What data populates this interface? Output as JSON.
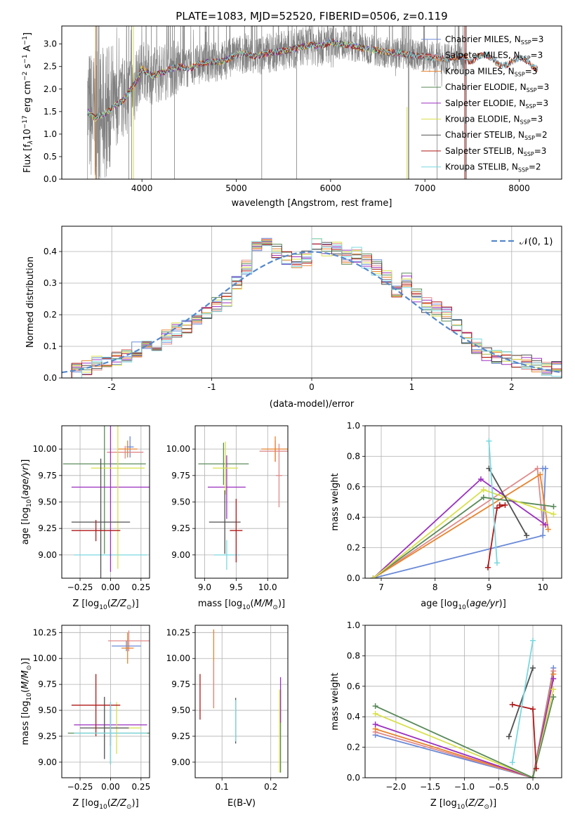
{
  "chart_data": [
    {
      "id": "spectrum",
      "type": "line",
      "title": "PLATE=1083, MJD=52520, FIBERID=0506, z=0.119",
      "xlabel": "wavelength [Angstrom, rest frame]",
      "ylabel": "Flux [f$_\\lambda$10$^{-17}$ erg cm$^{-2}$ s$^{-1}$ A$^{-1}$]",
      "ylabel_parts": {
        "a": "Flux [f",
        "b": "λ",
        "c": "10",
        "d": "−17",
        "e": " erg cm",
        "f": "−2",
        "g": " s",
        "h": "−1",
        "i": " A",
        "j": "−1",
        "k": "]"
      },
      "xlim": [
        3150,
        8450
      ],
      "ylim": [
        0,
        3.4
      ],
      "xticks": [
        4000,
        5000,
        6000,
        7000,
        8000
      ],
      "yticks": [
        0.0,
        0.5,
        1.0,
        1.5,
        2.0,
        2.5,
        3.0
      ],
      "legend_position": "right",
      "data_color": "#808080",
      "model_x": [
        3420,
        3500,
        3600,
        3700,
        3800,
        3900,
        3950,
        4000,
        4100,
        4200,
        4300,
        4400,
        4500,
        4600,
        4700,
        4800,
        4900,
        5000,
        5100,
        5200,
        5300,
        5400,
        5500,
        5600,
        5700,
        5800,
        5900,
        6000,
        6100,
        6200,
        6300,
        6400,
        6500,
        6600,
        6700,
        6800,
        6900,
        7000,
        7100,
        7200,
        7300,
        7400
      ],
      "model_y": [
        1.5,
        1.35,
        1.45,
        1.6,
        1.75,
        2.05,
        2.2,
        2.45,
        2.3,
        2.35,
        2.45,
        2.5,
        2.45,
        2.55,
        2.6,
        2.6,
        2.65,
        2.75,
        2.8,
        2.72,
        2.78,
        2.82,
        2.85,
        2.88,
        2.95,
        2.98,
        2.95,
        3.05,
        3.0,
        2.97,
        2.92,
        2.9,
        2.85,
        2.82,
        2.8,
        2.78,
        2.75,
        2.72,
        2.7,
        2.68,
        2.7,
        2.72
      ],
      "legend": [
        {
          "label": "Chabrier MILES, N$_{SSP}$=3",
          "pre": "Chabrier MILES, N",
          "sub": "SSP",
          "post": "=3",
          "color": "#6a8ad8"
        },
        {
          "label": "Salpeter MILES, N$_{SSP}$=3",
          "pre": "Salpeter MILES, N",
          "sub": "SSP",
          "post": "=3",
          "color": "#e08a8a"
        },
        {
          "label": "Kroupa MILES, N$_{SSP}$=3",
          "pre": "Kroupa MILES, N",
          "sub": "SSP",
          "post": "=3",
          "color": "#e8832d"
        },
        {
          "label": "Chabrier ELODIE, N$_{SSP}$=3",
          "pre": "Chabrier ELODIE, N",
          "sub": "SSP",
          "post": "=3",
          "color": "#5a8a5a"
        },
        {
          "label": "Salpeter ELODIE, N$_{SSP}$=3",
          "pre": "Salpeter ELODIE, N",
          "sub": "SSP",
          "post": "=3",
          "color": "#9b30c0"
        },
        {
          "label": "Kroupa ELODIE, N$_{SSP}$=3",
          "pre": "Kroupa ELODIE, N",
          "sub": "SSP",
          "post": "=3",
          "color": "#d8e04a"
        },
        {
          "label": "Chabrier STELIB, N$_{SSP}$=2",
          "pre": "Chabrier STELIB, N",
          "sub": "SSP",
          "post": "=2",
          "color": "#505050"
        },
        {
          "label": "Salpeter STELIB, N$_{SSP}$=3",
          "pre": "Salpeter STELIB, N",
          "sub": "SSP",
          "post": "=3",
          "color": "#b01818"
        },
        {
          "label": "Kroupa STELIB, N$_{SSP}$=2",
          "pre": "Kroupa STELIB, N",
          "sub": "SSP",
          "post": "=2",
          "color": "#7ad8e0"
        }
      ]
    },
    {
      "id": "residuals",
      "type": "line",
      "xlabel": "(data-model)/error",
      "ylabel": "Normed distribution",
      "xlim": [
        -2.5,
        2.5
      ],
      "ylim": [
        0,
        0.48
      ],
      "xticks": [
        -2,
        -1,
        0,
        1,
        2
      ],
      "yticks": [
        0.0,
        0.1,
        0.2,
        0.3,
        0.4
      ],
      "grid": true,
      "legend": [
        {
          "label": "$\\mathcal{N}(0,1)$",
          "text": "𝒩(0, 1)",
          "color": "#5588cc"
        }
      ],
      "legend_position": "top-right",
      "normal_curve": {
        "mean": 0,
        "sigma": 1,
        "color": "#5588cc",
        "dashed": true
      },
      "bin_width": 0.1,
      "hist_x": [
        -2.5,
        -2.4,
        -2.3,
        -2.2,
        -2.1,
        -2.0,
        -1.9,
        -1.8,
        -1.7,
        -1.6,
        -1.5,
        -1.4,
        -1.3,
        -1.2,
        -1.1,
        -1.0,
        -0.9,
        -0.8,
        -0.7,
        -0.6,
        -0.5,
        -0.4,
        -0.3,
        -0.2,
        -0.1,
        0.0,
        0.1,
        0.2,
        0.3,
        0.4,
        0.5,
        0.6,
        0.7,
        0.8,
        0.9,
        1.0,
        1.1,
        1.2,
        1.3,
        1.4,
        1.5,
        1.6,
        1.7,
        1.8,
        1.9,
        2.0,
        2.1,
        2.2,
        2.3,
        2.4
      ],
      "hist_y": [
        0.02,
        0.025,
        0.035,
        0.05,
        0.06,
        0.065,
        0.075,
        0.09,
        0.1,
        0.11,
        0.13,
        0.15,
        0.16,
        0.19,
        0.21,
        0.23,
        0.25,
        0.3,
        0.35,
        0.42,
        0.43,
        0.4,
        0.38,
        0.37,
        0.38,
        0.42,
        0.41,
        0.41,
        0.38,
        0.39,
        0.37,
        0.35,
        0.32,
        0.28,
        0.31,
        0.26,
        0.23,
        0.22,
        0.2,
        0.17,
        0.12,
        0.1,
        0.08,
        0.07,
        0.06,
        0.05,
        0.05,
        0.04,
        0.03,
        0.03
      ]
    },
    {
      "id": "age_vs_Z",
      "type": "scatter",
      "xlabel": "Z [log$_{10}$(Z/Z$_\\odot$)]",
      "ylabel": "age  [log$_{10}$(age/yr)]",
      "xlim": [
        -0.4,
        0.32
      ],
      "ylim": [
        8.78,
        10.22
      ],
      "xticks": [
        -0.25,
        0.0,
        0.25
      ],
      "xticklabels": [
        "−0.25",
        "0.00",
        "0.25"
      ],
      "yticks": [
        9.0,
        9.25,
        9.5,
        9.75,
        10.0
      ],
      "yticklabels": [
        "9.00",
        "9.25",
        "9.50",
        "9.75",
        "10.00"
      ],
      "points": [
        {
          "x": 0.0,
          "y": 9.0,
          "xerr": 0.3,
          "yerr": 0.01,
          "color": "#7ad8e0"
        },
        {
          "x": 0.16,
          "y": 10.02,
          "xerr": 0.03,
          "yerr": 0.1,
          "color": "#6a8ad8"
        },
        {
          "x": 0.12,
          "y": 9.97,
          "xerr": 0.15,
          "yerr": 0.06,
          "color": "#e08a8a"
        },
        {
          "x": 0.14,
          "y": 10.0,
          "xerr": 0.08,
          "yerr": 0.08,
          "color": "#e8832d"
        },
        {
          "x": -0.05,
          "y": 9.86,
          "xerr": 0.34,
          "yerr": 0.85,
          "color": "#5a8a5a"
        },
        {
          "x": 0.0,
          "y": 9.64,
          "xerr": 0.32,
          "yerr": 0.8,
          "color": "#9b30c0"
        },
        {
          "x": 0.06,
          "y": 9.82,
          "xerr": 0.22,
          "yerr": 0.95,
          "color": "#d8e04a"
        },
        {
          "x": -0.08,
          "y": 9.31,
          "xerr": 0.24,
          "yerr": 0.6,
          "color": "#505050"
        },
        {
          "x": -0.12,
          "y": 9.23,
          "xerr": 0.2,
          "yerr": 0.1,
          "color": "#b01818"
        }
      ]
    },
    {
      "id": "age_vs_mass",
      "type": "scatter",
      "xlabel": "mass [log$_{10}$(M/M$_\\odot$)]",
      "ylabel": "",
      "xlim": [
        8.85,
        10.32
      ],
      "ylim": [
        8.78,
        10.22
      ],
      "xticks": [
        9.0,
        9.5,
        10.0
      ],
      "xticklabels": [
        "9.0",
        "9.5",
        "10.0"
      ],
      "yticks": [
        9.0,
        9.25,
        9.5,
        9.75,
        10.0
      ],
      "yticklabels": [
        "9.00",
        "9.25",
        "9.50",
        "9.75",
        "10.00"
      ],
      "points": [
        {
          "x": 9.35,
          "y": 9.0,
          "xerr": 0.2,
          "yerr": 0.14,
          "color": "#7ad8e0"
        },
        {
          "x": 10.12,
          "y": 9.98,
          "xerr": 0.25,
          "yerr": 0.1,
          "color": "#e08a8a"
        },
        {
          "x": 10.12,
          "y": 10.0,
          "xerr": 0.22,
          "yerr": 0.12,
          "color": "#e8832d"
        },
        {
          "x": 9.3,
          "y": 9.86,
          "xerr": 0.4,
          "yerr": 0.2,
          "color": "#5a8a5a"
        },
        {
          "x": 9.35,
          "y": 9.64,
          "xerr": 0.3,
          "yerr": 0.3,
          "color": "#9b30c0"
        },
        {
          "x": 9.33,
          "y": 9.82,
          "xerr": 0.2,
          "yerr": 0.25,
          "color": "#d8e04a"
        },
        {
          "x": 9.32,
          "y": 9.31,
          "xerr": 0.25,
          "yerr": 0.3,
          "color": "#505050"
        },
        {
          "x": 9.5,
          "y": 9.23,
          "xerr": 0.1,
          "yerr": 0.3,
          "color": "#b01818"
        },
        {
          "x": 10.18,
          "y": 9.75,
          "xerr": 0.05,
          "yerr": 0.3,
          "color": "#e08a8a"
        }
      ]
    },
    {
      "id": "weight_vs_age",
      "type": "line",
      "xlabel": "age  [log$_{10}$(age/yr)]",
      "ylabel": "mass weight",
      "xlim": [
        6.7,
        10.35
      ],
      "ylim": [
        0,
        1.0
      ],
      "xticks": [
        7,
        8,
        9,
        10
      ],
      "yticks": [
        0.0,
        0.2,
        0.4,
        0.6,
        0.8,
        1.0
      ],
      "yticklabels": [
        "0.0",
        "0.2",
        "0.4",
        "0.6",
        "0.8",
        "1.0"
      ],
      "grid": true,
      "series": [
        {
          "color": "#6a8ad8",
          "x": [
            6.85,
            10.0,
            10.05,
            10.0
          ],
          "y": [
            0.0,
            0.28,
            0.72,
            0.72
          ]
        },
        {
          "color": "#e08a8a",
          "x": [
            6.85,
            9.9,
            10.0
          ],
          "y": [
            0.0,
            0.72,
            0.35
          ]
        },
        {
          "color": "#e8832d",
          "x": [
            6.85,
            9.95,
            10.1
          ],
          "y": [
            0.0,
            0.68,
            0.32
          ]
        },
        {
          "color": "#5a8a5a",
          "x": [
            6.85,
            8.9,
            10.2
          ],
          "y": [
            0.0,
            0.53,
            0.47
          ]
        },
        {
          "color": "#9b30c0",
          "x": [
            6.85,
            8.85,
            10.05
          ],
          "y": [
            0.0,
            0.65,
            0.35
          ]
        },
        {
          "color": "#d8e04a",
          "x": [
            6.85,
            8.9,
            10.2
          ],
          "y": [
            0.0,
            0.58,
            0.42
          ]
        },
        {
          "color": "#505050",
          "x": [
            9.0,
            9.7
          ],
          "y": [
            0.72,
            0.28
          ]
        },
        {
          "color": "#b01818",
          "x": [
            8.98,
            9.15,
            9.3,
            9.2
          ],
          "y": [
            0.07,
            0.46,
            0.48,
            0.48
          ]
        },
        {
          "color": "#7ad8e0",
          "x": [
            9.0,
            9.15
          ],
          "y": [
            0.9,
            0.1
          ]
        }
      ]
    },
    {
      "id": "mass_vs_Z",
      "type": "scatter",
      "xlabel": "Z [log$_{10}$(Z/Z$_\\odot$)]",
      "ylabel": "mass [log$_{10}$(M/M$_\\odot$)]",
      "xlim": [
        -0.4,
        0.32
      ],
      "ylim": [
        8.85,
        10.32
      ],
      "xticks": [
        -0.25,
        0.0,
        0.25
      ],
      "xticklabels": [
        "−0.25",
        "0.00",
        "0.25"
      ],
      "yticks": [
        9.0,
        9.25,
        9.5,
        9.75,
        10.0,
        10.25
      ],
      "yticklabels": [
        "9.00",
        "9.25",
        "9.50",
        "9.75",
        "10.00",
        "10.25"
      ],
      "points": [
        {
          "x": 0.15,
          "y": 10.17,
          "xerr": 0.17,
          "yerr": 0.1,
          "color": "#e08a8a"
        },
        {
          "x": 0.13,
          "y": 10.12,
          "xerr": 0.12,
          "yerr": 0.05,
          "color": "#6a8ad8"
        },
        {
          "x": 0.14,
          "y": 10.1,
          "xerr": 0.05,
          "yerr": 0.15,
          "color": "#e8832d"
        },
        {
          "x": 0.0,
          "y": 9.28,
          "xerr": 0.35,
          "yerr": 0.3,
          "color": "#5a8a5a"
        },
        {
          "x": 0.0,
          "y": 9.36,
          "xerr": 0.3,
          "yerr": 0.2,
          "color": "#9b30c0"
        },
        {
          "x": 0.05,
          "y": 9.33,
          "xerr": 0.2,
          "yerr": 0.25,
          "color": "#d8e04a"
        },
        {
          "x": -0.05,
          "y": 9.33,
          "xerr": 0.2,
          "yerr": 0.3,
          "color": "#505050"
        },
        {
          "x": -0.12,
          "y": 9.55,
          "xerr": 0.2,
          "yerr": 0.3,
          "color": "#b01818"
        },
        {
          "x": 0.0,
          "y": 9.28,
          "xerr": 0.3,
          "yerr": 0.3,
          "color": "#7ad8e0"
        }
      ]
    },
    {
      "id": "mass_vs_EBV",
      "type": "scatter",
      "xlabel": "E(B-V)",
      "ylabel": "",
      "xlim": [
        0.045,
        0.235
      ],
      "ylim": [
        8.85,
        10.32
      ],
      "xticks": [
        0.1,
        0.2
      ],
      "xticklabels": [
        "0.1",
        "0.2"
      ],
      "yticks": [
        9.0,
        9.25,
        9.5,
        9.75,
        10.0,
        10.25
      ],
      "yticklabels": [
        "9.00",
        "9.25",
        "9.50",
        "9.75",
        "10.00",
        "10.25"
      ],
      "points": [
        {
          "x": 0.055,
          "y": 9.63,
          "xerr": 0.0,
          "yerr": 0.22,
          "color": "#b01818"
        },
        {
          "x": 0.083,
          "y": 9.9,
          "xerr": 0.0,
          "yerr": 0.38,
          "color": "#e8832d"
        },
        {
          "x": 0.083,
          "y": 9.75,
          "xerr": 0.0,
          "yerr": 0.22,
          "color": "#e08a8a"
        },
        {
          "x": 0.128,
          "y": 9.4,
          "xerr": 0.0,
          "yerr": 0.22,
          "color": "#505050"
        },
        {
          "x": 0.128,
          "y": 9.4,
          "xerr": 0.0,
          "yerr": 0.2,
          "color": "#7ad8e0"
        },
        {
          "x": 0.22,
          "y": 9.3,
          "xerr": 0.0,
          "yerr": 0.4,
          "color": "#5a8a5a"
        },
        {
          "x": 0.22,
          "y": 9.6,
          "xerr": 0.0,
          "yerr": 0.22,
          "color": "#9b30c0"
        },
        {
          "x": 0.218,
          "y": 9.3,
          "xerr": 0.0,
          "yerr": 0.4,
          "color": "#d8e04a"
        }
      ]
    },
    {
      "id": "weight_vs_Z",
      "type": "line",
      "xlabel": "Z [log$_{10}$(Z/Z$_\\odot$)]",
      "ylabel": "mass weight",
      "xlim": [
        -2.45,
        0.42
      ],
      "ylim": [
        0,
        1.0
      ],
      "xticks": [
        -2.0,
        -1.5,
        -1.0,
        -0.5,
        0.0
      ],
      "xticklabels": [
        "−2.0",
        "−1.5",
        "−1.0",
        "−0.5",
        "0.0"
      ],
      "yticks": [
        0.0,
        0.2,
        0.4,
        0.6,
        0.8,
        1.0
      ],
      "yticklabels": [
        "0.0",
        "0.2",
        "0.4",
        "0.6",
        "0.8",
        "1.0"
      ],
      "grid": true,
      "series": [
        {
          "color": "#6a8ad8",
          "x": [
            -2.3,
            0.0,
            0.3
          ],
          "y": [
            0.28,
            0.0,
            0.72
          ]
        },
        {
          "color": "#e08a8a",
          "x": [
            -2.3,
            0.0,
            0.3
          ],
          "y": [
            0.3,
            0.0,
            0.7
          ]
        },
        {
          "color": "#e8832d",
          "x": [
            -2.3,
            0.0,
            0.3
          ],
          "y": [
            0.32,
            0.0,
            0.68
          ]
        },
        {
          "color": "#9b30c0",
          "x": [
            -2.3,
            0.0,
            0.3
          ],
          "y": [
            0.35,
            0.0,
            0.65
          ]
        },
        {
          "color": "#d8e04a",
          "x": [
            -2.3,
            0.0,
            0.3
          ],
          "y": [
            0.42,
            0.0,
            0.58
          ]
        },
        {
          "color": "#5a8a5a",
          "x": [
            -2.3,
            0.0,
            0.3
          ],
          "y": [
            0.47,
            0.0,
            0.53
          ]
        },
        {
          "color": "#505050",
          "x": [
            -0.35,
            0.0
          ],
          "y": [
            0.27,
            0.72
          ]
        },
        {
          "color": "#b01818",
          "x": [
            -0.3,
            0.0,
            0.05
          ],
          "y": [
            0.48,
            0.45,
            0.06
          ]
        },
        {
          "color": "#7ad8e0",
          "x": [
            -0.3,
            0.0
          ],
          "y": [
            0.1,
            0.9
          ]
        }
      ]
    }
  ]
}
